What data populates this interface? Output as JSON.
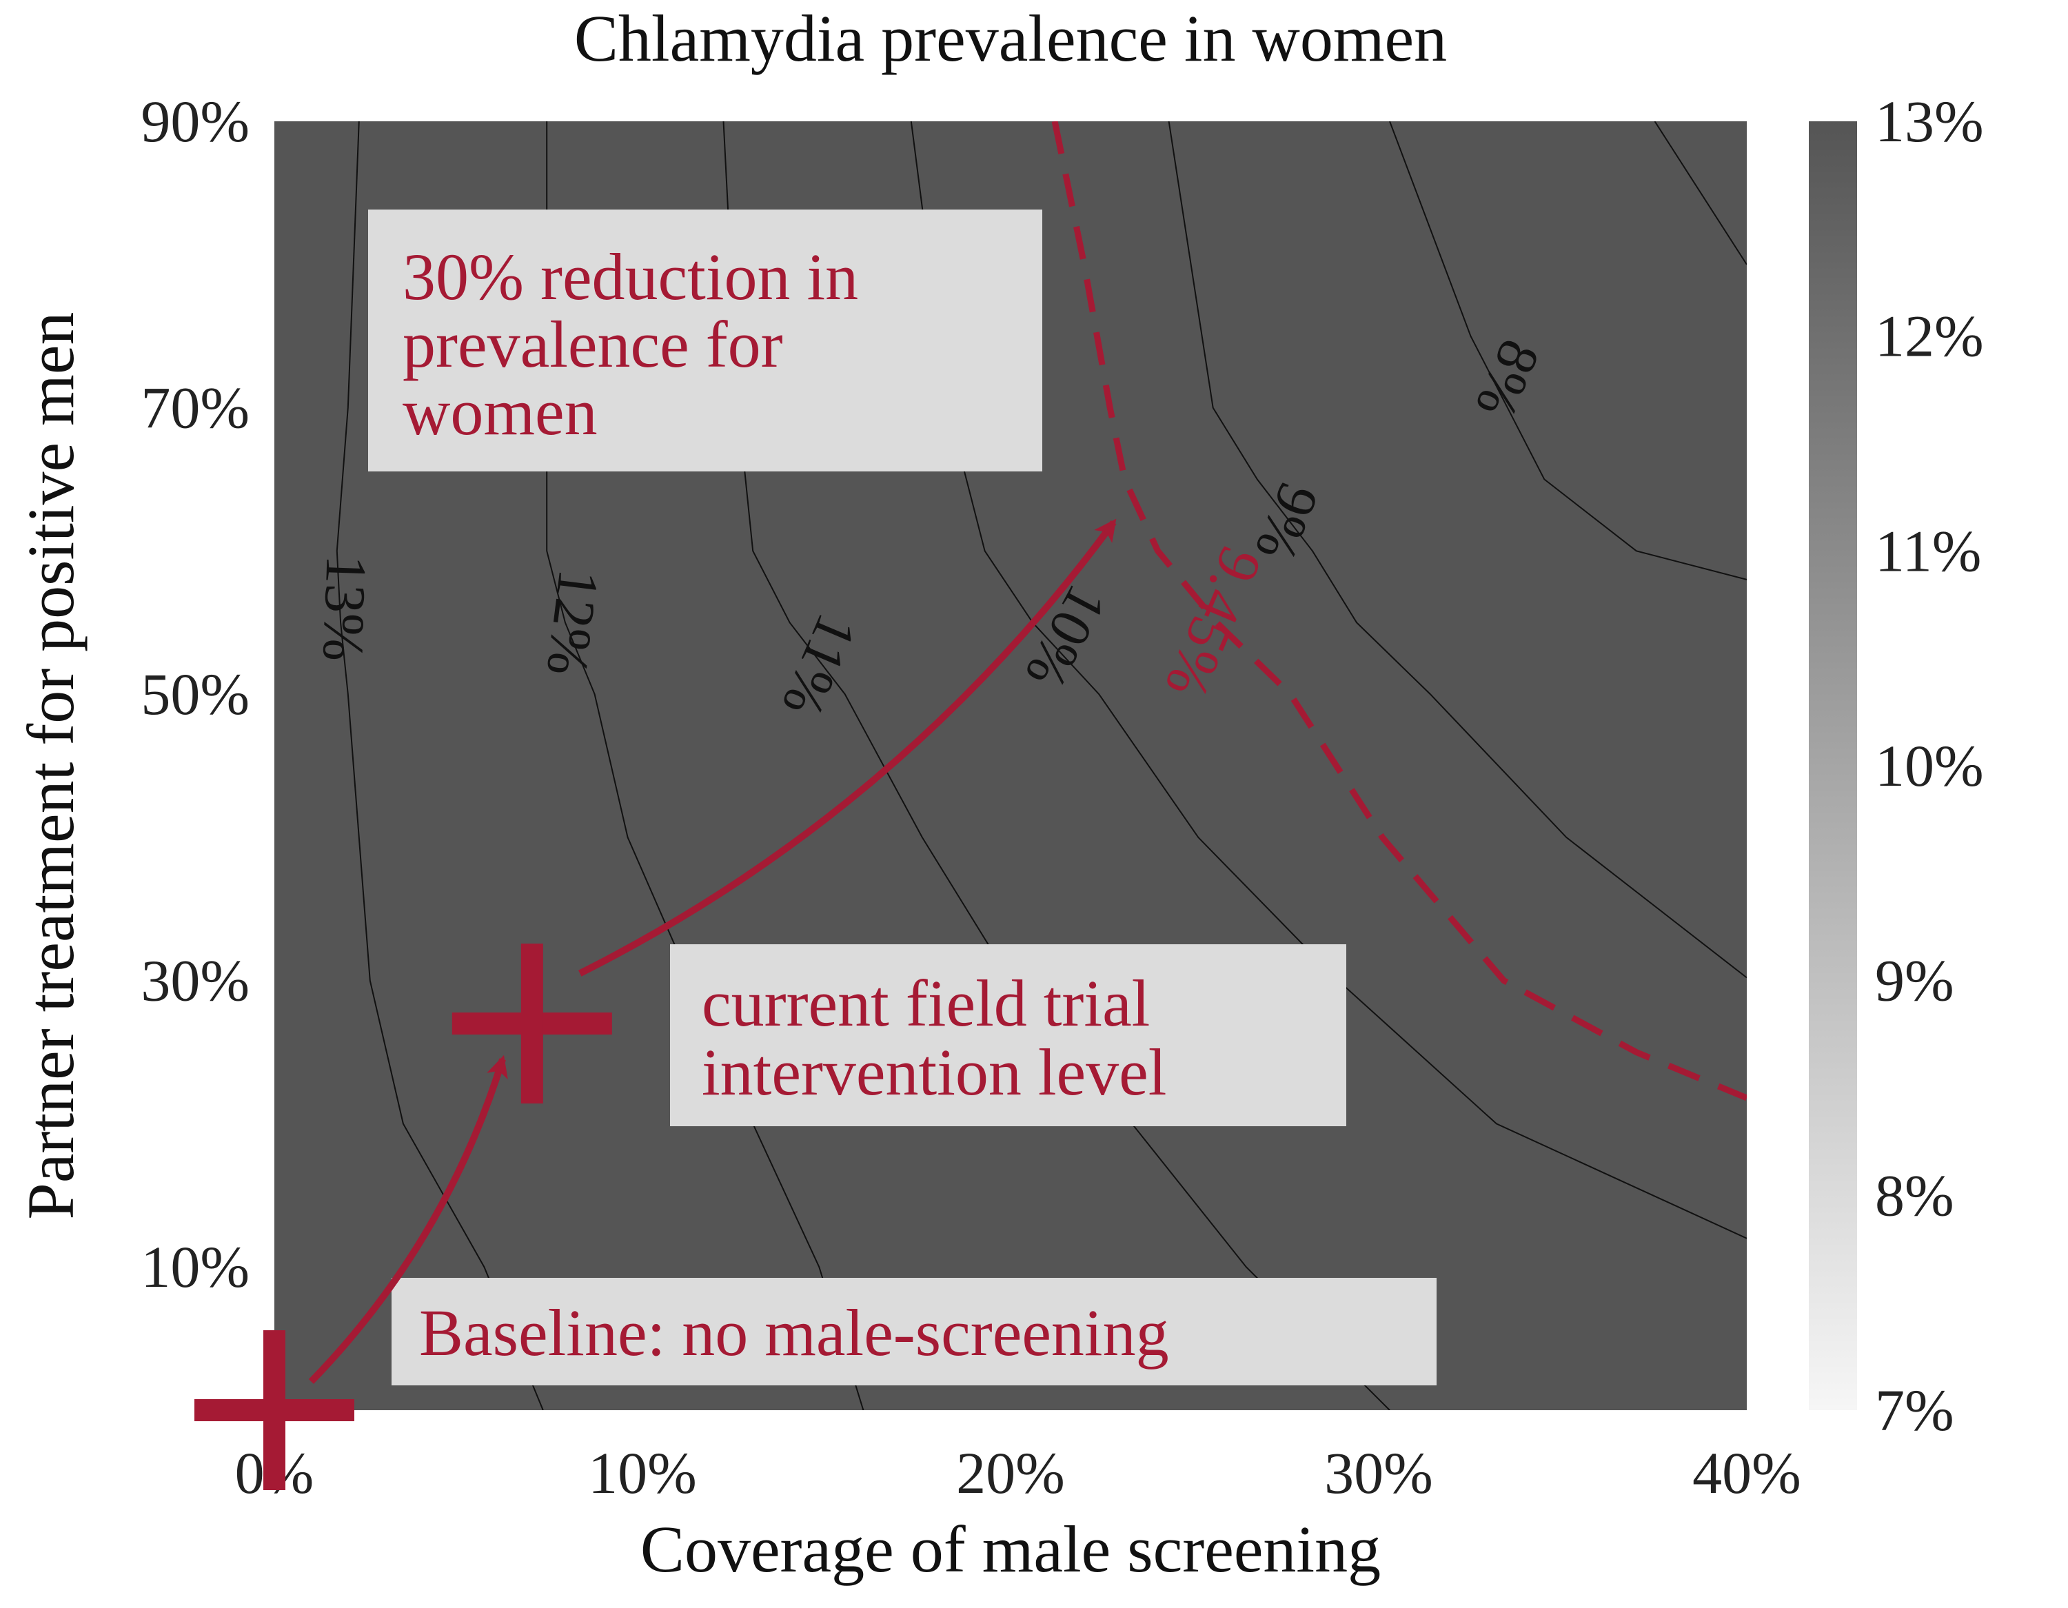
{
  "chart_data": {
    "type": "contour",
    "title": "Chlamydia prevalence in women",
    "xlabel": "Coverage of male screening",
    "ylabel": "Partner treatment for positive men",
    "xlim": [
      0,
      40
    ],
    "ylim": [
      0,
      90
    ],
    "x_ticks": [
      {
        "value": 0,
        "label": "0%"
      },
      {
        "value": 10,
        "label": "10%"
      },
      {
        "value": 20,
        "label": "20%"
      },
      {
        "value": 30,
        "label": "30%"
      },
      {
        "value": 40,
        "label": "40%"
      }
    ],
    "y_ticks": [
      {
        "value": 10,
        "label": "10%"
      },
      {
        "value": 30,
        "label": "30%"
      },
      {
        "value": 50,
        "label": "50%"
      },
      {
        "value": 70,
        "label": "70%"
      },
      {
        "value": 90,
        "label": "90%"
      }
    ],
    "colorbar": {
      "range": [
        7,
        13
      ],
      "ticks": [
        {
          "value": 13,
          "label": "13%"
        },
        {
          "value": 12,
          "label": "12%"
        },
        {
          "value": 11,
          "label": "11%"
        },
        {
          "value": 10,
          "label": "10%"
        },
        {
          "value": 9,
          "label": "9%"
        },
        {
          "value": 8,
          "label": "8%"
        },
        {
          "value": 7,
          "label": "7%"
        }
      ],
      "dark_color": "#555555",
      "light_color": "#f6f6f6"
    },
    "region_colors": [
      "#f6f6f6",
      "#e5e5e5",
      "#c9c9c9",
      "#b0b0b0",
      "#999999",
      "#7c7c7c",
      "#555555"
    ],
    "contours": [
      {
        "level": 13,
        "label": "13%",
        "points": [
          [
            2.3,
            90
          ],
          [
            2.0,
            70
          ],
          [
            1.7,
            60
          ],
          [
            1.8,
            55
          ],
          [
            2.0,
            50
          ],
          [
            2.6,
            30
          ],
          [
            3.5,
            20
          ],
          [
            5.7,
            10
          ],
          [
            7.3,
            0
          ]
        ],
        "label_pos": [
          1.9,
          56
        ],
        "label_rotation": 92
      },
      {
        "level": 12,
        "label": "12%",
        "points": [
          [
            7.4,
            90
          ],
          [
            7.4,
            70
          ],
          [
            7.4,
            60
          ],
          [
            7.9,
            55
          ],
          [
            8.7,
            50
          ],
          [
            9.6,
            40
          ],
          [
            11.3,
            30
          ],
          [
            13.0,
            20
          ],
          [
            14.8,
            10
          ],
          [
            16.0,
            0
          ]
        ],
        "label_pos": [
          8.1,
          55
        ],
        "label_rotation": 97
      },
      {
        "level": 11,
        "label": "11%",
        "points": [
          [
            12.2,
            90
          ],
          [
            12.6,
            70
          ],
          [
            13.0,
            60
          ],
          [
            14.0,
            55
          ],
          [
            15.5,
            50
          ],
          [
            17.6,
            40
          ],
          [
            20.0,
            30
          ],
          [
            23.3,
            20
          ],
          [
            26.4,
            10
          ],
          [
            30.3,
            0
          ]
        ],
        "label_pos": [
          14.8,
          52
        ],
        "label_rotation": 113
      },
      {
        "level": 10,
        "label": "10%",
        "points": [
          [
            17.3,
            90
          ],
          [
            18.3,
            70
          ],
          [
            19.3,
            60
          ],
          [
            20.6,
            55
          ],
          [
            22.4,
            50
          ],
          [
            25.1,
            40
          ],
          [
            28.9,
            30
          ],
          [
            33.2,
            20
          ],
          [
            40,
            12.0
          ]
        ],
        "label_pos": [
          21.5,
          54
        ],
        "label_rotation": 118
      },
      {
        "level": 9,
        "label": "9%",
        "points": [
          [
            24.3,
            90
          ],
          [
            25.5,
            70
          ],
          [
            26.7,
            65
          ],
          [
            28.2,
            60
          ],
          [
            29.4,
            55
          ],
          [
            31.4,
            50
          ],
          [
            35.1,
            40
          ],
          [
            40,
            30.2
          ]
        ],
        "label_pos": [
          27.5,
          62
        ],
        "label_rotation": 112
      },
      {
        "level": 8,
        "label": "8%",
        "points": [
          [
            30.3,
            90
          ],
          [
            32.5,
            75
          ],
          [
            34.5,
            65
          ],
          [
            37.0,
            60
          ],
          [
            40,
            58.0
          ]
        ],
        "label_pos": [
          33.5,
          72
        ],
        "label_rotation": 113
      },
      {
        "level": 7.5,
        "label": "",
        "points": [
          [
            37.5,
            90
          ],
          [
            40,
            80.0
          ]
        ],
        "label_pos": null,
        "label_rotation": 0
      }
    ],
    "target_contour": {
      "level": 9.45,
      "label": "9.45%",
      "style": "dashed",
      "color": "#a51a34",
      "points": [
        [
          21.2,
          90
        ],
        [
          22.0,
          80
        ],
        [
          22.7,
          70
        ],
        [
          23.1,
          65
        ],
        [
          24.0,
          60
        ],
        [
          25.6,
          55
        ],
        [
          27.6,
          50
        ],
        [
          30.1,
          40
        ],
        [
          33.4,
          30
        ],
        [
          37.0,
          25
        ],
        [
          40,
          21.8
        ]
      ],
      "label_pos": [
        25.5,
        55
      ],
      "label_rotation": 113
    },
    "markers": [
      {
        "name": "baseline",
        "x": 0,
        "y": 0,
        "symbol": "plus",
        "color": "#a51a34"
      },
      {
        "name": "current",
        "x": 7,
        "y": 27,
        "symbol": "plus",
        "color": "#a51a34"
      }
    ],
    "arrows": [
      {
        "from": [
          1.0,
          2.0
        ],
        "to": [
          6.2,
          24.5
        ],
        "color": "#a51a34"
      },
      {
        "from": [
          8.3,
          30.5
        ],
        "to": [
          22.8,
          62.0
        ],
        "color": "#a51a34"
      }
    ],
    "annotations": [
      {
        "name": "reduction-annotation",
        "lines": [
          "30% reduction in",
          "prevalence for",
          "women"
        ]
      },
      {
        "name": "current-level-annotation",
        "lines": [
          "current field trial",
          "intervention level"
        ]
      },
      {
        "name": "baseline-annotation",
        "lines": [
          "Baseline: no male-screening"
        ]
      }
    ],
    "accent_color": "#a51a34",
    "grid": false,
    "legend": "none"
  }
}
